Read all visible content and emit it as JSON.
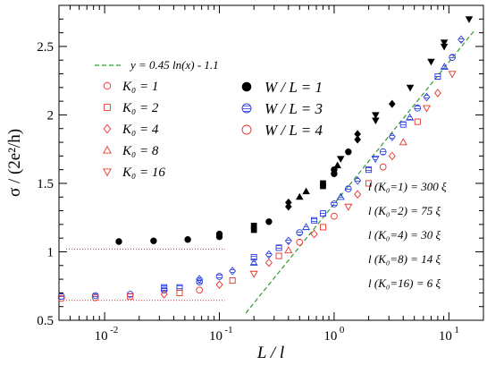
{
  "chart_data": {
    "type": "scatter",
    "x_scale": "log",
    "xlim": [
      0.004,
      20
    ],
    "ylim": [
      0.5,
      2.8
    ],
    "xlabel": "L / l",
    "ylabel": "σ / (2e²/h)",
    "x_ticks": [
      {
        "value": 0.01,
        "label": "10",
        "exp": "-2"
      },
      {
        "value": 0.1,
        "label": "10",
        "exp": "-1"
      },
      {
        "value": 1,
        "label": "10",
        "exp": "0"
      },
      {
        "value": 10,
        "label": "10",
        "exp": "1"
      }
    ],
    "y_ticks": [
      {
        "value": 0.5,
        "label": "0.5"
      },
      {
        "value": 1,
        "label": "1"
      },
      {
        "value": 1.5,
        "label": "1.5"
      },
      {
        "value": 2,
        "label": "2"
      },
      {
        "value": 2.5,
        "label": "2.5"
      }
    ],
    "fit_line": {
      "label": "y = 0.45 ln(x) - 1.1",
      "color": "#2e9a2e",
      "x_start": 0.17,
      "x_end": 17
    },
    "reference_lines": [
      {
        "y": 1.02,
        "x_start": 0.004,
        "x_end": 0.1,
        "color": "#a04040"
      },
      {
        "y": 0.645,
        "x_start": 0.004,
        "x_end": 0.1,
        "color": "#c02020"
      }
    ],
    "legend_k": [
      {
        "name": "K₀ = 1",
        "marker": "circle",
        "color": "#e8302a"
      },
      {
        "name": "K₀ = 2",
        "marker": "square",
        "color": "#e8302a"
      },
      {
        "name": "K₀ = 4",
        "marker": "diamond",
        "color": "#e8302a"
      },
      {
        "name": "K₀ = 8",
        "marker": "triangle-up",
        "color": "#e8302a"
      },
      {
        "name": "K₀ = 16",
        "marker": "triangle-down",
        "color": "#e8302a"
      }
    ],
    "legend_w": [
      {
        "name": "W / L  = 1",
        "style": "filled",
        "color": "#000000"
      },
      {
        "name": "W / L  = 3",
        "style": "open-hatched",
        "color": "#2a3ce0"
      },
      {
        "name": "W / L  = 4",
        "style": "open",
        "color": "#e8302a"
      }
    ],
    "annotations": [
      "l (K₀=1) = 300 ξ",
      "l (K₀=2) = 75 ξ",
      "l (K₀=4) = 30 ξ",
      "l (K₀=8) = 14 ξ",
      "l (K₀=16) = 6 ξ"
    ],
    "series": [
      {
        "name": "W/L=1",
        "style": "filled",
        "color": "#000000",
        "points": [
          {
            "x": 0.0133,
            "y": 1.075,
            "m": "circle"
          },
          {
            "x": 0.0267,
            "y": 1.08,
            "m": "circle"
          },
          {
            "x": 0.053,
            "y": 1.09,
            "m": "circle"
          },
          {
            "x": 0.1,
            "y": 1.11,
            "m": "circle"
          },
          {
            "x": 0.1,
            "y": 1.13,
            "m": "circle"
          },
          {
            "x": 0.2,
            "y": 1.16,
            "m": "square"
          },
          {
            "x": 0.2,
            "y": 1.19,
            "m": "square"
          },
          {
            "x": 0.27,
            "y": 1.22,
            "m": "circle"
          },
          {
            "x": 0.4,
            "y": 1.33,
            "m": "diamond"
          },
          {
            "x": 0.4,
            "y": 1.36,
            "m": "diamond"
          },
          {
            "x": 0.5,
            "y": 1.4,
            "m": "triangle-up"
          },
          {
            "x": 0.57,
            "y": 1.44,
            "m": "triangle-up"
          },
          {
            "x": 0.8,
            "y": 1.48,
            "m": "square"
          },
          {
            "x": 0.8,
            "y": 1.5,
            "m": "square"
          },
          {
            "x": 1.0,
            "y": 1.57,
            "m": "circle"
          },
          {
            "x": 1.0,
            "y": 1.6,
            "m": "circle"
          },
          {
            "x": 1.07,
            "y": 1.63,
            "m": "triangle-up"
          },
          {
            "x": 1.14,
            "y": 1.68,
            "m": "triangle-down"
          },
          {
            "x": 1.33,
            "y": 1.73,
            "m": "circle"
          },
          {
            "x": 1.6,
            "y": 1.82,
            "m": "diamond"
          },
          {
            "x": 1.6,
            "y": 1.86,
            "m": "diamond"
          },
          {
            "x": 2.3,
            "y": 1.96,
            "m": "triangle-down"
          },
          {
            "x": 2.3,
            "y": 2.0,
            "m": "triangle-down"
          },
          {
            "x": 3.2,
            "y": 2.08,
            "m": "diamond"
          },
          {
            "x": 4.6,
            "y": 2.2,
            "m": "triangle-down"
          },
          {
            "x": 7.0,
            "y": 2.39,
            "m": "triangle-down"
          },
          {
            "x": 9.1,
            "y": 2.5,
            "m": "triangle-down"
          },
          {
            "x": 9.1,
            "y": 2.53,
            "m": "triangle-down"
          },
          {
            "x": 15.0,
            "y": 2.7,
            "m": "triangle-down"
          }
        ]
      },
      {
        "name": "W/L=3",
        "style": "hatched",
        "color": "#2a3ce0",
        "points": [
          {
            "x": 0.0042,
            "y": 0.675,
            "m": "circle"
          },
          {
            "x": 0.0083,
            "y": 0.68,
            "m": "circle"
          },
          {
            "x": 0.0167,
            "y": 0.69,
            "m": "circle"
          },
          {
            "x": 0.033,
            "y": 0.72,
            "m": "circle"
          },
          {
            "x": 0.033,
            "y": 0.74,
            "m": "square"
          },
          {
            "x": 0.045,
            "y": 0.74,
            "m": "square"
          },
          {
            "x": 0.067,
            "y": 0.78,
            "m": "circle"
          },
          {
            "x": 0.067,
            "y": 0.8,
            "m": "diamond"
          },
          {
            "x": 0.1,
            "y": 0.82,
            "m": "circle"
          },
          {
            "x": 0.13,
            "y": 0.86,
            "m": "diamond"
          },
          {
            "x": 0.2,
            "y": 0.92,
            "m": "triangle-up"
          },
          {
            "x": 0.2,
            "y": 0.96,
            "m": "square"
          },
          {
            "x": 0.27,
            "y": 0.98,
            "m": "diamond"
          },
          {
            "x": 0.33,
            "y": 1.03,
            "m": "square"
          },
          {
            "x": 0.4,
            "y": 1.08,
            "m": "diamond"
          },
          {
            "x": 0.5,
            "y": 1.14,
            "m": "circle"
          },
          {
            "x": 0.57,
            "y": 1.18,
            "m": "triangle-up"
          },
          {
            "x": 0.67,
            "y": 1.23,
            "m": "square"
          },
          {
            "x": 0.8,
            "y": 1.28,
            "m": "square"
          },
          {
            "x": 1.0,
            "y": 1.35,
            "m": "circle"
          },
          {
            "x": 1.14,
            "y": 1.4,
            "m": "triangle-up"
          },
          {
            "x": 1.33,
            "y": 1.46,
            "m": "circle"
          },
          {
            "x": 1.6,
            "y": 1.52,
            "m": "diamond"
          },
          {
            "x": 2.0,
            "y": 1.6,
            "m": "square"
          },
          {
            "x": 2.29,
            "y": 1.68,
            "m": "triangle-down"
          },
          {
            "x": 2.67,
            "y": 1.73,
            "m": "circle"
          },
          {
            "x": 3.2,
            "y": 1.84,
            "m": "diamond"
          },
          {
            "x": 4.0,
            "y": 1.93,
            "m": "square"
          },
          {
            "x": 4.57,
            "y": 1.98,
            "m": "triangle-up"
          },
          {
            "x": 5.33,
            "y": 2.05,
            "m": "circle"
          },
          {
            "x": 6.4,
            "y": 2.13,
            "m": "diamond"
          },
          {
            "x": 8.0,
            "y": 2.28,
            "m": "square"
          },
          {
            "x": 9.14,
            "y": 2.35,
            "m": "triangle-up"
          },
          {
            "x": 10.7,
            "y": 2.42,
            "m": "circle"
          },
          {
            "x": 12.8,
            "y": 2.55,
            "m": "diamond"
          }
        ]
      },
      {
        "name": "W/L=4",
        "style": "open",
        "color": "#e8302a",
        "points": [
          {
            "x": 0.0042,
            "y": 0.66,
            "m": "circle"
          },
          {
            "x": 0.0083,
            "y": 0.665,
            "m": "circle"
          },
          {
            "x": 0.0167,
            "y": 0.675,
            "m": "square"
          },
          {
            "x": 0.033,
            "y": 0.69,
            "m": "diamond"
          },
          {
            "x": 0.045,
            "y": 0.7,
            "m": "square"
          },
          {
            "x": 0.067,
            "y": 0.72,
            "m": "circle"
          },
          {
            "x": 0.1,
            "y": 0.76,
            "m": "diamond"
          },
          {
            "x": 0.13,
            "y": 0.79,
            "m": "square"
          },
          {
            "x": 0.2,
            "y": 0.84,
            "m": "triangle-down"
          },
          {
            "x": 0.27,
            "y": 0.92,
            "m": "diamond"
          },
          {
            "x": 0.33,
            "y": 0.97,
            "m": "square"
          },
          {
            "x": 0.4,
            "y": 1.01,
            "m": "triangle-up"
          },
          {
            "x": 0.5,
            "y": 1.07,
            "m": "circle"
          },
          {
            "x": 0.67,
            "y": 1.13,
            "m": "diamond"
          },
          {
            "x": 0.8,
            "y": 1.18,
            "m": "square"
          },
          {
            "x": 1.0,
            "y": 1.26,
            "m": "circle"
          },
          {
            "x": 1.33,
            "y": 1.33,
            "m": "triangle-down"
          },
          {
            "x": 1.6,
            "y": 1.42,
            "m": "diamond"
          },
          {
            "x": 2.0,
            "y": 1.5,
            "m": "square"
          },
          {
            "x": 2.67,
            "y": 1.62,
            "m": "circle"
          },
          {
            "x": 3.2,
            "y": 1.7,
            "m": "diamond"
          },
          {
            "x": 4.0,
            "y": 1.8,
            "m": "triangle-up"
          },
          {
            "x": 5.33,
            "y": 1.95,
            "m": "square"
          },
          {
            "x": 6.4,
            "y": 2.05,
            "m": "triangle-down"
          },
          {
            "x": 8.0,
            "y": 2.16,
            "m": "diamond"
          },
          {
            "x": 10.7,
            "y": 2.3,
            "m": "triangle-down"
          }
        ]
      }
    ]
  }
}
